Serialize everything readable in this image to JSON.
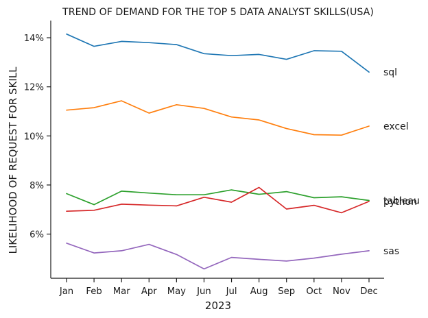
{
  "chart_data": {
    "type": "line",
    "title": "TREND OF DEMAND FOR THE TOP 5 DATA ANALYST SKILLS(USA)",
    "xlabel": "2023",
    "ylabel": "LIKELIHOOD OF REQUEST FOR SKILL",
    "categories": [
      "Jan",
      "Feb",
      "Mar",
      "Apr",
      "May",
      "Jun",
      "Jul",
      "Aug",
      "Sep",
      "Oct",
      "Nov",
      "Dec"
    ],
    "ylim": [
      4.2,
      14.7
    ],
    "yticks": [
      6,
      8,
      10,
      12,
      14
    ],
    "ytick_labels": [
      "6%",
      "8%",
      "10%",
      "12%",
      "14%"
    ],
    "grid": false,
    "legend": "none",
    "series": [
      {
        "name": "sql",
        "color": "#1f77b4",
        "values": [
          14.15,
          13.65,
          13.85,
          13.8,
          13.72,
          13.35,
          13.27,
          13.32,
          13.12,
          13.47,
          13.45,
          12.6
        ]
      },
      {
        "name": "excel",
        "color": "#ff7f0e",
        "values": [
          11.05,
          11.15,
          11.43,
          10.93,
          11.27,
          11.12,
          10.77,
          10.65,
          10.3,
          10.05,
          10.03,
          10.4
        ]
      },
      {
        "name": "tableau",
        "color": "#2ca02c",
        "values": [
          7.65,
          7.2,
          7.75,
          7.67,
          7.6,
          7.6,
          7.8,
          7.62,
          7.73,
          7.48,
          7.52,
          7.37
        ]
      },
      {
        "name": "python",
        "color": "#d62728",
        "values": [
          6.93,
          6.97,
          7.22,
          7.18,
          7.15,
          7.5,
          7.3,
          7.9,
          7.02,
          7.17,
          6.87,
          7.33
        ]
      },
      {
        "name": "sas",
        "color": "#9467bd",
        "values": [
          5.63,
          5.23,
          5.32,
          5.58,
          5.17,
          4.58,
          5.05,
          4.97,
          4.9,
          5.02,
          5.18,
          5.32
        ]
      }
    ]
  }
}
